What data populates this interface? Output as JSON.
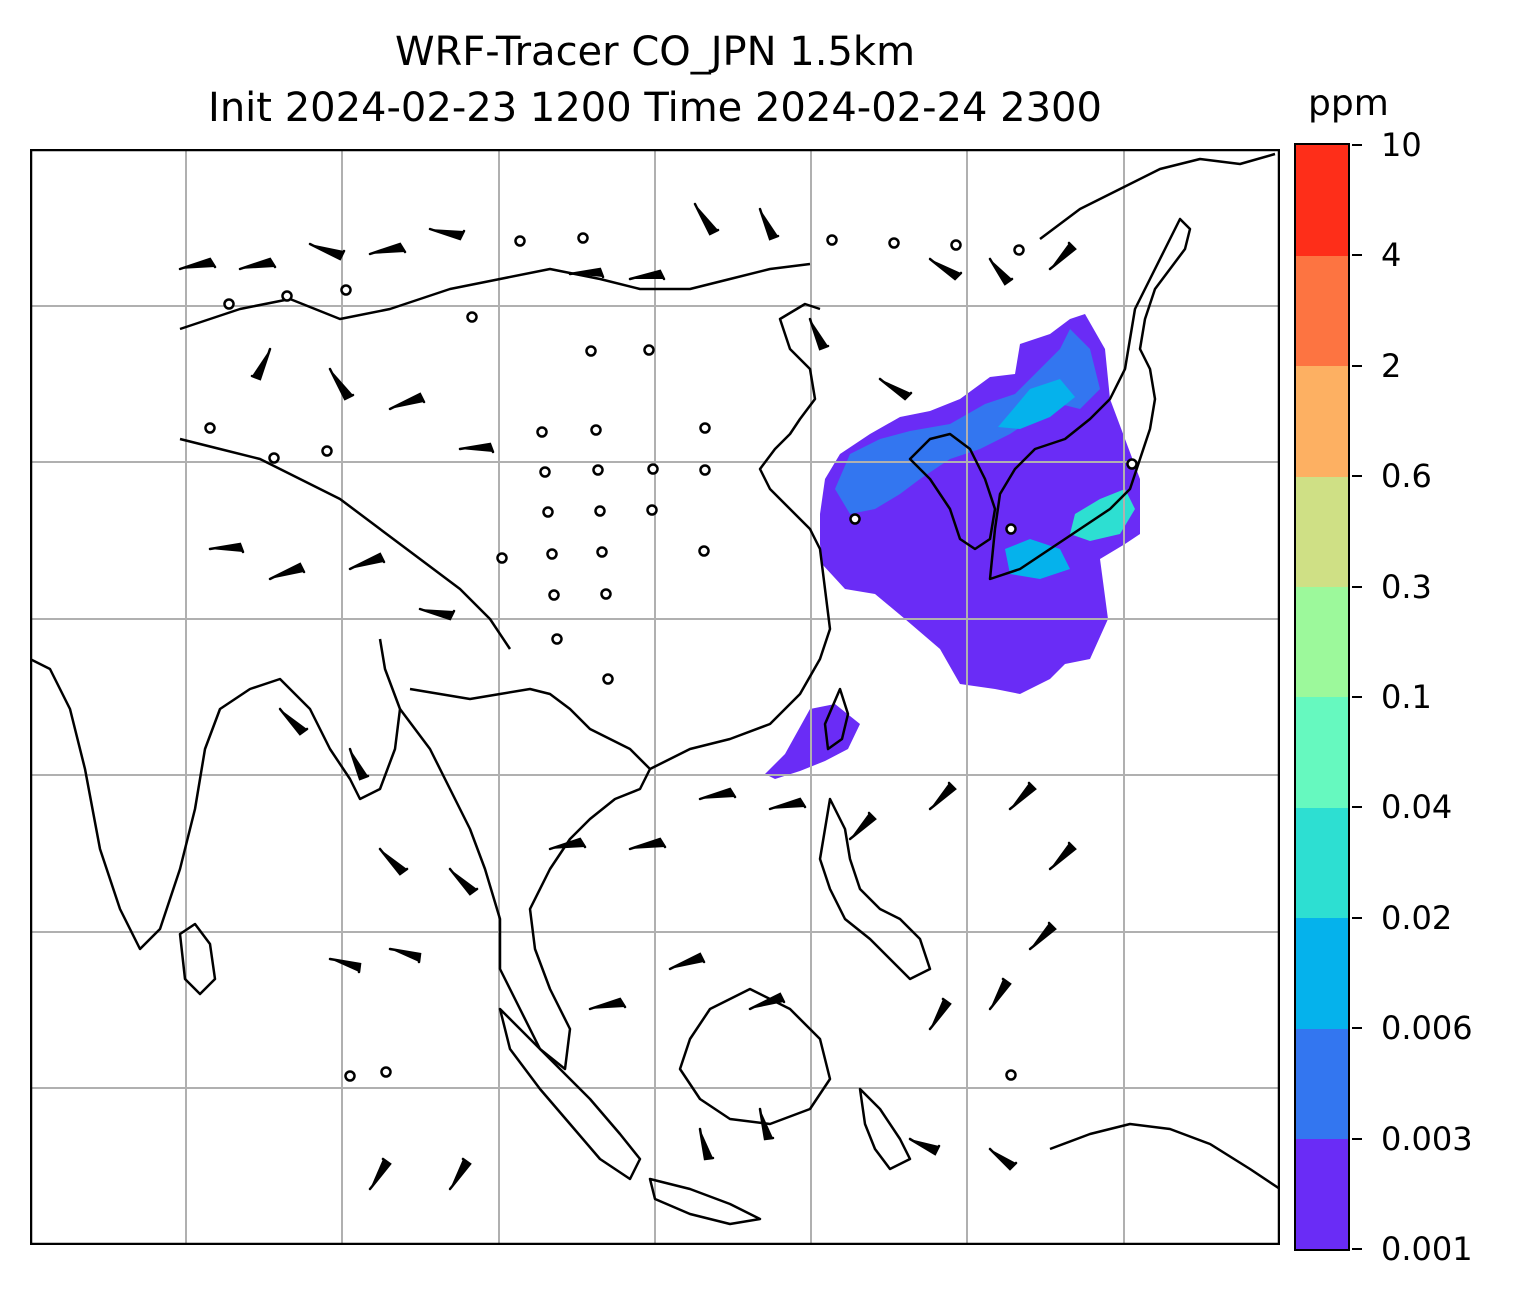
{
  "title": {
    "line1": "WRF-Tracer CO_JPN 1.5km",
    "line2": "Init 2024-02-23 1200 Time 2024-02-24 2300"
  },
  "colorbar": {
    "units": "ppm",
    "levels": [
      "0.001",
      "0.003",
      "0.006",
      "0.02",
      "0.04",
      "0.1",
      "0.3",
      "0.6",
      "2",
      "4",
      "10"
    ],
    "colors": [
      "#6a2cf6",
      "#3376f0",
      "#05b2ec",
      "#2ddfd2",
      "#66f9bf",
      "#9cf99b",
      "#cfe085",
      "#fdb062",
      "#fd7441",
      "#fe2e19"
    ]
  },
  "map": {
    "gridlines": true,
    "features": [
      "coastlines",
      "country-borders",
      "wind-barbs",
      "co-tracer-plume"
    ],
    "gridline_color": "#b0b0b0"
  }
}
